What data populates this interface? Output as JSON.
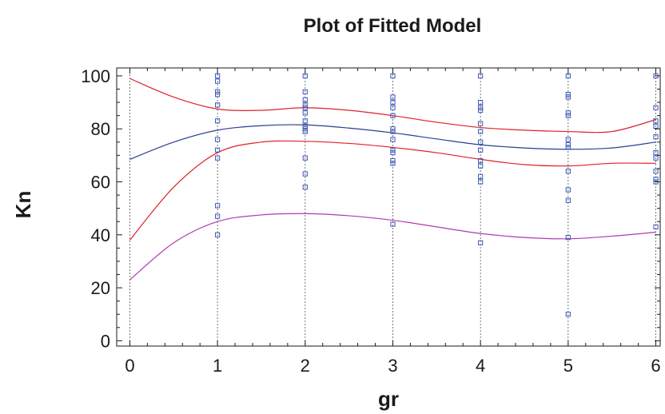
{
  "chart_data": {
    "type": "scatter",
    "title": "Plot of Fitted Model",
    "xlabel": "gr",
    "ylabel": "Kn",
    "xlim": [
      -0.15,
      6.05
    ],
    "ylim": [
      -2,
      103
    ],
    "xticks": [
      "0",
      "1",
      "2",
      "3",
      "4",
      "5",
      "6"
    ],
    "yticks": [
      "0",
      "20",
      "40",
      "60",
      "80",
      "100"
    ],
    "grid": "vertical dashed lines at x = 0 to 6",
    "colors": {
      "fitted": "#2b3f8f",
      "confidence": "#e0202a",
      "prediction": "#b03ab0",
      "points": "#3a56b8"
    },
    "series": [
      {
        "style": "scatter",
        "points": [
          [
            1,
            100
          ],
          [
            1,
            98
          ],
          [
            1,
            94
          ],
          [
            1,
            93
          ],
          [
            1,
            89
          ],
          [
            1,
            83
          ],
          [
            1,
            76
          ],
          [
            1,
            72
          ],
          [
            1,
            69
          ],
          [
            1,
            51
          ],
          [
            1,
            47
          ],
          [
            1,
            40
          ],
          [
            2,
            100
          ],
          [
            2,
            94
          ],
          [
            2,
            91
          ],
          [
            2,
            89
          ],
          [
            2,
            88
          ],
          [
            2,
            86
          ],
          [
            2,
            83
          ],
          [
            2,
            81
          ],
          [
            2,
            80
          ],
          [
            2,
            79
          ],
          [
            2,
            69
          ],
          [
            2,
            63
          ],
          [
            2,
            58
          ],
          [
            3,
            100
          ],
          [
            3,
            92
          ],
          [
            3,
            90
          ],
          [
            3,
            88
          ],
          [
            3,
            85
          ],
          [
            3,
            80
          ],
          [
            3,
            79
          ],
          [
            3,
            76
          ],
          [
            3,
            72
          ],
          [
            3,
            71
          ],
          [
            3,
            68
          ],
          [
            3,
            67
          ],
          [
            3,
            44
          ],
          [
            4,
            100
          ],
          [
            4,
            90
          ],
          [
            4,
            88
          ],
          [
            4,
            87
          ],
          [
            4,
            82
          ],
          [
            4,
            79
          ],
          [
            4,
            75
          ],
          [
            4,
            72
          ],
          [
            4,
            68
          ],
          [
            4,
            66
          ],
          [
            4,
            62
          ],
          [
            4,
            60
          ],
          [
            4,
            37
          ],
          [
            5,
            100
          ],
          [
            5,
            93
          ],
          [
            5,
            92
          ],
          [
            5,
            86
          ],
          [
            5,
            85
          ],
          [
            5,
            76
          ],
          [
            5,
            74
          ],
          [
            5,
            73
          ],
          [
            5,
            64
          ],
          [
            5,
            57
          ],
          [
            5,
            53
          ],
          [
            5,
            39
          ],
          [
            5,
            10
          ],
          [
            6,
            100
          ],
          [
            6,
            88
          ],
          [
            6,
            83
          ],
          [
            6,
            81
          ],
          [
            6,
            77
          ],
          [
            6,
            71
          ],
          [
            6,
            69
          ],
          [
            6,
            64
          ],
          [
            6,
            61
          ],
          [
            6,
            60
          ],
          [
            6,
            43
          ]
        ]
      },
      {
        "style": "line",
        "role": "fitted",
        "x": [
          0,
          0.5,
          1,
          1.5,
          2,
          2.5,
          3,
          3.5,
          4,
          4.5,
          5,
          5.5,
          6
        ],
        "y": [
          68.5,
          75,
          79.5,
          81.2,
          81.5,
          80.3,
          78.5,
          76.2,
          74,
          72.8,
          72.3,
          72.8,
          75
        ]
      },
      {
        "style": "line",
        "role": "confidence-upper",
        "x": [
          0,
          0.5,
          1,
          1.5,
          2,
          2.5,
          3,
          3.5,
          4,
          4.5,
          5,
          5.5,
          6
        ],
        "y": [
          99,
          92,
          87.5,
          87,
          88,
          87,
          85,
          82.5,
          80.5,
          79.5,
          79,
          79,
          83.5
        ]
      },
      {
        "style": "line",
        "role": "confidence-lower",
        "x": [
          0,
          0.5,
          1,
          1.5,
          2,
          2.5,
          3,
          3.5,
          4,
          4.5,
          5,
          5.5,
          6
        ],
        "y": [
          38,
          58,
          71,
          75,
          75.3,
          74.5,
          73,
          71,
          68.5,
          66.5,
          66,
          67,
          67
        ]
      },
      {
        "style": "line",
        "role": "prediction-lower",
        "x": [
          0,
          0.5,
          1,
          1.5,
          2,
          2.5,
          3,
          3.5,
          4,
          4.5,
          5,
          5.5,
          6
        ],
        "y": [
          23,
          37,
          45,
          47.5,
          48,
          47.2,
          45.5,
          43,
          40.5,
          39,
          38.5,
          39.5,
          41
        ]
      }
    ]
  }
}
